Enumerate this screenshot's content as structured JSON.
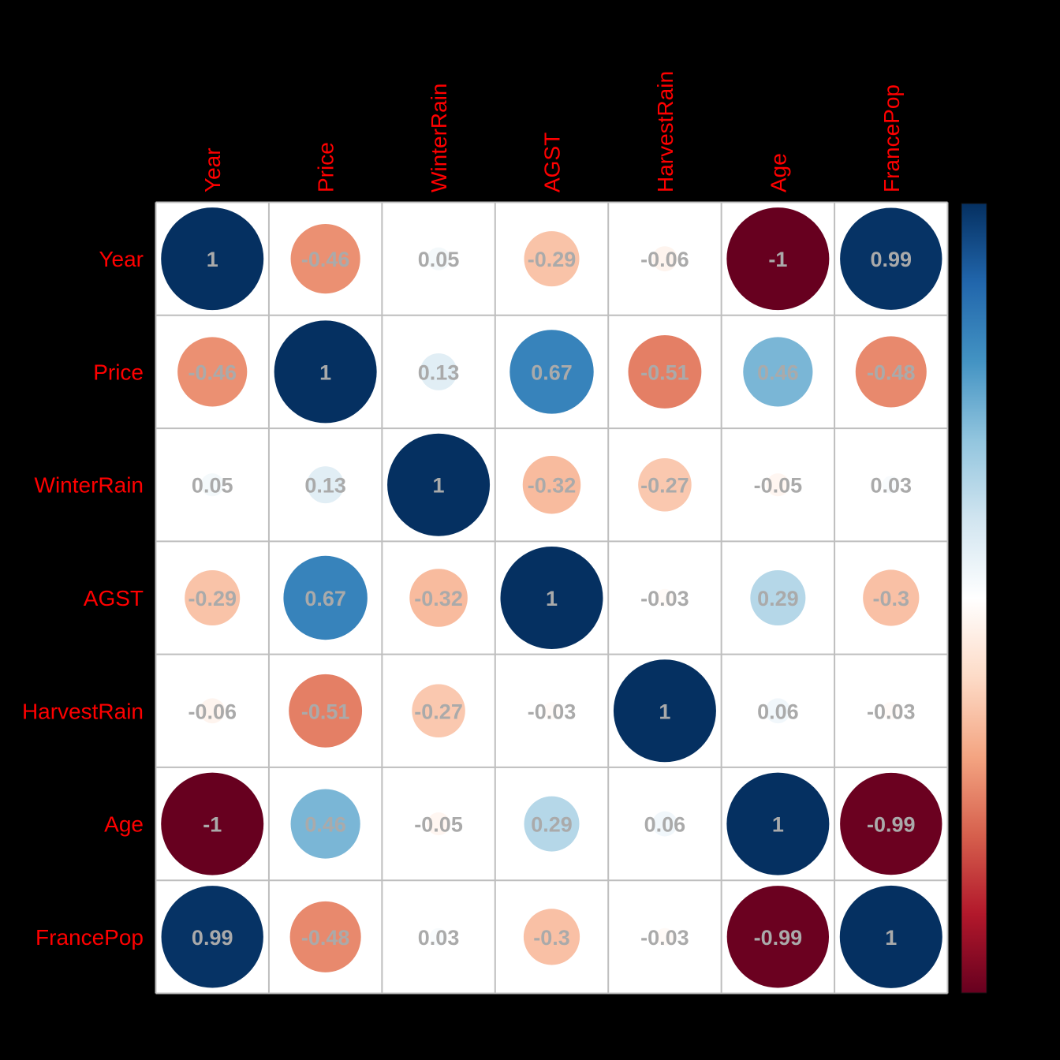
{
  "chart_data": {
    "type": "heatmap",
    "subtype": "correlation-matrix-circles",
    "title": "",
    "variables": [
      "Year",
      "Price",
      "WinterRain",
      "AGST",
      "HarvestRain",
      "Age",
      "FrancePop"
    ],
    "matrix": [
      [
        1,
        -0.46,
        0.05,
        -0.29,
        -0.06,
        -1,
        0.99
      ],
      [
        -0.46,
        1,
        0.13,
        0.67,
        -0.51,
        0.46,
        -0.48
      ],
      [
        0.05,
        0.13,
        1,
        -0.32,
        -0.27,
        -0.05,
        0.03
      ],
      [
        -0.29,
        0.67,
        -0.32,
        1,
        -0.03,
        0.29,
        -0.3
      ],
      [
        -0.06,
        -0.51,
        -0.27,
        -0.03,
        1,
        0.06,
        -0.03
      ],
      [
        -1,
        0.46,
        -0.05,
        0.29,
        0.06,
        1,
        -0.99
      ],
      [
        0.99,
        -0.48,
        0.03,
        -0.3,
        -0.03,
        -0.99,
        1
      ]
    ],
    "labels": [
      "1",
      "-0.46",
      "0.05",
      "-0.29",
      "-0.06",
      "-1",
      "0.99",
      "-0.46",
      "1",
      "0.13",
      "0.67",
      "-0.51",
      "0.46",
      "-0.48",
      "0.05",
      "0.13",
      "1",
      "-0.32",
      "-0.27",
      "-0.05",
      "0.03",
      "-0.29",
      "0.67",
      "-0.32",
      "1",
      "-0.03",
      "0.29",
      "-0.3",
      "-0.06",
      "-0.51",
      "-0.27",
      "-0.03",
      "1",
      "0.06",
      "-0.03",
      "-1",
      "0.46",
      "-0.05",
      "0.29",
      "0.06",
      "1",
      "-0.99",
      "0.99",
      "-0.48",
      "0.03",
      "-0.3",
      "-0.03",
      "-0.99",
      "1"
    ],
    "colorbar": {
      "range": [
        -1,
        1
      ],
      "ticks": [
        -1,
        -0.8,
        -0.6,
        -0.4,
        -0.2,
        0,
        0.2,
        0.4,
        0.6,
        0.8,
        1
      ],
      "position": "right"
    },
    "grid": true,
    "legend_position": "right"
  },
  "colors": {
    "background": "#000000",
    "cell_background": "#FFFFFF",
    "grid_line": "#BEBEBE",
    "label_text": "#FF0000",
    "value_text": "#AAAAAA",
    "palette_RdBu": [
      "#67001F",
      "#B2182B",
      "#D6604D",
      "#F4A582",
      "#FDDBC7",
      "#FFFFFF",
      "#D1E5F0",
      "#92C5DE",
      "#4393C3",
      "#2166AC",
      "#053061"
    ]
  }
}
